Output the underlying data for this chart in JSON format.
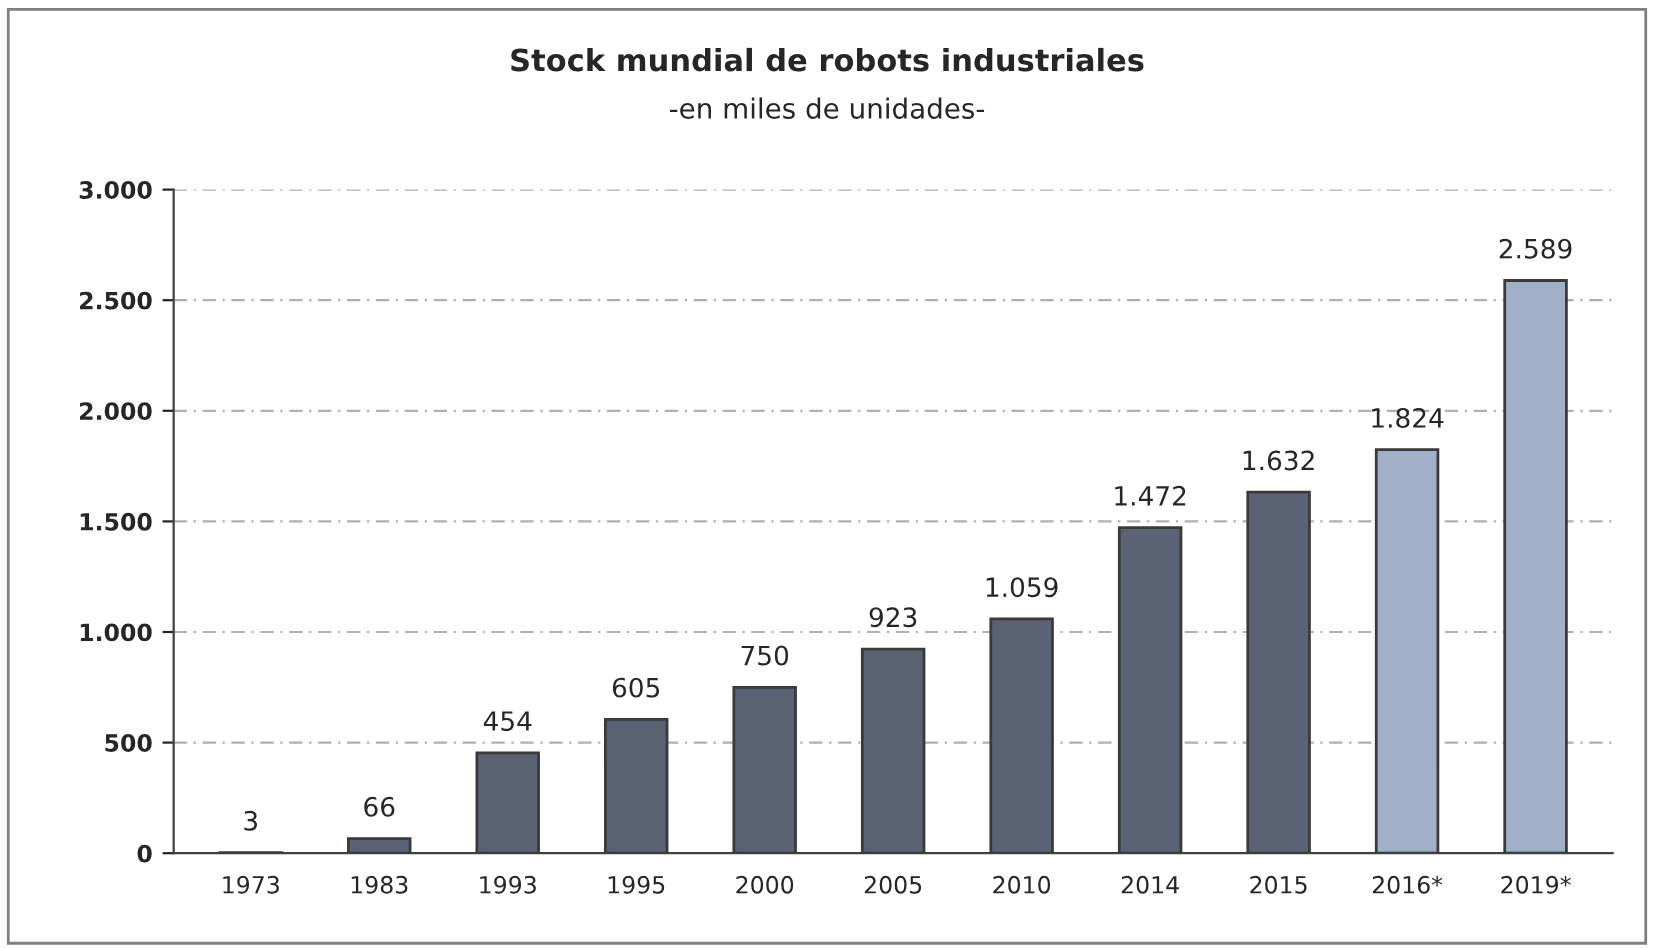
{
  "chart_data": {
    "type": "bar",
    "title": "Stock mundial de robots industriales",
    "subtitle": "-en miles de unidades-",
    "categories": [
      "1973",
      "1983",
      "1993",
      "1995",
      "2000",
      "2005",
      "2010",
      "2014",
      "2015",
      "2016*",
      "2019*"
    ],
    "values": [
      3,
      66,
      454,
      605,
      750,
      923,
      1059,
      1472,
      1632,
      1824,
      2589
    ],
    "colors": [
      "#5b6273",
      "#5b6273",
      "#5b6273",
      "#5b6273",
      "#5b6273",
      "#5b6273",
      "#5b6273",
      "#5b6273",
      "#5b6273",
      "#a0b0c8",
      "#a0b0c8"
    ],
    "value_labels": [
      "3",
      "66",
      "454",
      "605",
      "750",
      "923",
      "1.059",
      "1.472",
      "1.632",
      "1.824",
      "2.589"
    ],
    "ylim": [
      0,
      3000
    ],
    "yticks": [
      0,
      500,
      {
        "value": 1000,
        "label": "1.000"
      },
      {
        "value": 1500,
        "label": "1.500"
      },
      {
        "value": 2000,
        "label": "2.000"
      },
      {
        "value": 2500,
        "label": "2.500"
      },
      {
        "value": 3000,
        "label": "3.000"
      }
    ],
    "grid": "y",
    "legend": false
  }
}
